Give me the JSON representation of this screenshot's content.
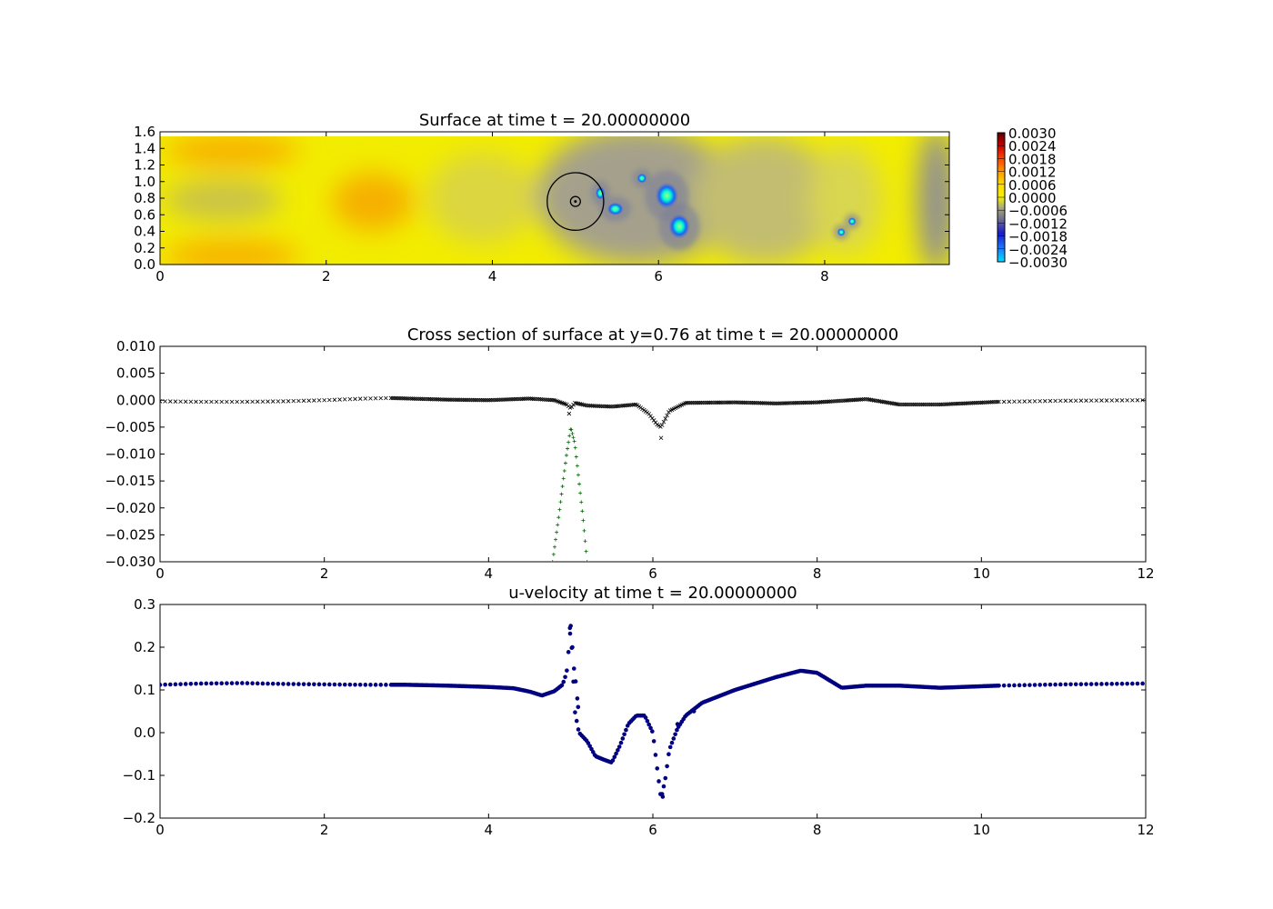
{
  "chart_data": [
    {
      "type": "heatmap",
      "title": "Surface at time t =    20.00000000",
      "xlim": [
        0,
        9.5
      ],
      "ylim": [
        0,
        1.6
      ],
      "xticks": [
        "0",
        "2",
        "4",
        "6",
        "8"
      ],
      "xtick_values": [
        0,
        2,
        4,
        6,
        8
      ],
      "yticks": [
        "0.0",
        "0.2",
        "0.4",
        "0.6",
        "0.8",
        "1.0",
        "1.2",
        "1.4",
        "1.6"
      ],
      "ytick_values": [
        0,
        0.2,
        0.4,
        0.6,
        0.8,
        1.0,
        1.2,
        1.4,
        1.6
      ],
      "colorbar": {
        "labels": [
          "0.0030",
          "0.0024",
          "0.0018",
          "0.0012",
          "0.0006",
          "0.0000",
          "−0.0006",
          "−0.0012",
          "−0.0018",
          "−0.0024",
          "−0.0030"
        ],
        "values": [
          0.003,
          0.0024,
          0.0018,
          0.0012,
          0.0006,
          0,
          -0.0006,
          -0.0012,
          -0.0018,
          -0.0024,
          -0.003
        ],
        "colors": [
          "#5a0000",
          "#cc0000",
          "#ff4400",
          "#ff9900",
          "#ffdd00",
          "#f4f000",
          "#999999",
          "#777788",
          "#1a1acc",
          "#1a80ff",
          "#00e0ff"
        ]
      },
      "body_circle": {
        "x": 5.0,
        "y": 0.76,
        "outer_radius": 0.34,
        "inner_radius": 0.06
      },
      "features": [
        {
          "x": 5.3,
          "y": 0.86,
          "rx": 0.06,
          "ry": 0.08
        },
        {
          "x": 5.48,
          "y": 0.67,
          "rx": 0.1,
          "ry": 0.08
        },
        {
          "x": 5.8,
          "y": 1.04,
          "rx": 0.06,
          "ry": 0.06
        },
        {
          "x": 6.1,
          "y": 0.83,
          "rx": 0.14,
          "ry": 0.16
        },
        {
          "x": 6.25,
          "y": 0.46,
          "rx": 0.13,
          "ry": 0.15
        },
        {
          "x": 8.2,
          "y": 0.39,
          "rx": 0.05,
          "ry": 0.05
        },
        {
          "x": 8.33,
          "y": 0.52,
          "rx": 0.05,
          "ry": 0.05
        }
      ]
    },
    {
      "type": "scatter",
      "title": "Cross section of surface at y=0.76 at time t =    20.00000000",
      "xlim": [
        0,
        12
      ],
      "ylim": [
        -0.03,
        0.01
      ],
      "xticks": [
        "0",
        "2",
        "4",
        "6",
        "8",
        "10",
        "12"
      ],
      "xtick_values": [
        0,
        2,
        4,
        6,
        8,
        10,
        12
      ],
      "yticks": [
        "0.010",
        "0.005",
        "0.000",
        "−0.005",
        "−0.010",
        "−0.015",
        "−0.020",
        "−0.025",
        "−0.030"
      ],
      "ytick_values": [
        0.01,
        0.005,
        0,
        -0.005,
        -0.01,
        -0.015,
        -0.02,
        -0.025,
        -0.03
      ],
      "series": [
        {
          "marker": "x",
          "color": "#000000",
          "x": [
            0,
            0.5,
            1.0,
            1.5,
            2.0,
            2.5,
            2.8,
            3.5,
            4.0,
            4.5,
            4.8,
            4.95,
            5.0,
            5.05,
            5.2,
            5.5,
            5.8,
            5.95,
            6.05,
            6.1,
            6.2,
            6.4,
            7.0,
            7.5,
            8.0,
            8.6,
            9.0,
            9.5,
            10.2,
            11.0,
            12.0
          ],
          "y": [
            -0.0002,
            -0.0003,
            -0.0003,
            -0.0002,
            0.0,
            0.0003,
            0.0004,
            0.0001,
            0.0,
            0.0003,
            0.0,
            -0.0008,
            -0.0015,
            -0.0005,
            -0.001,
            -0.0012,
            -0.0008,
            -0.0025,
            -0.0045,
            -0.005,
            -0.002,
            -0.0005,
            -0.0004,
            -0.0006,
            -0.0004,
            0.0002,
            -0.0008,
            -0.0008,
            -0.0003,
            -0.0001,
            0.0
          ]
        },
        {
          "marker": "+",
          "color": "#006600",
          "x": [
            4.78,
            4.85,
            4.9,
            4.95,
            5.0,
            5.05,
            5.1,
            5.15,
            5.2
          ],
          "y": [
            -0.03,
            -0.022,
            -0.016,
            -0.01,
            -0.005,
            -0.008,
            -0.015,
            -0.022,
            -0.03
          ]
        }
      ]
    },
    {
      "type": "scatter",
      "title": "u-velocity at time t =    20.00000000",
      "xlim": [
        0,
        12
      ],
      "ylim": [
        -0.2,
        0.3
      ],
      "xticks": [
        "0",
        "2",
        "4",
        "6",
        "8",
        "10",
        "12"
      ],
      "xtick_values": [
        0,
        2,
        4,
        6,
        8,
        10,
        12
      ],
      "yticks": [
        "0.3",
        "0.2",
        "0.1",
        "0.0",
        "−0.1",
        "−0.2"
      ],
      "ytick_values": [
        0.3,
        0.2,
        0.1,
        0.0,
        -0.1,
        -0.2
      ],
      "series": [
        {
          "marker": "o",
          "color": "#000080",
          "x": [
            0,
            0.5,
            1.0,
            1.5,
            2.0,
            2.5,
            3.0,
            3.5,
            4.0,
            4.3,
            4.5,
            4.65,
            4.8,
            4.9,
            4.95,
            5.0,
            5.05,
            5.1,
            5.2,
            5.3,
            5.4,
            5.5,
            5.6,
            5.7,
            5.8,
            5.9,
            6.0,
            6.05,
            6.1,
            6.15,
            6.2,
            6.3,
            6.4,
            6.6,
            7.0,
            7.5,
            7.8,
            8.0,
            8.3,
            8.6,
            9.0,
            9.5,
            10.2,
            11.0,
            12.0
          ],
          "y": [
            0.112,
            0.115,
            0.116,
            0.114,
            0.113,
            0.112,
            0.112,
            0.11,
            0.107,
            0.104,
            0.096,
            0.087,
            0.097,
            0.112,
            0.14,
            0.248,
            0.05,
            0.0,
            -0.02,
            -0.055,
            -0.063,
            -0.07,
            -0.03,
            0.02,
            0.04,
            0.04,
            0.0,
            -0.08,
            -0.155,
            -0.11,
            -0.04,
            0.01,
            0.04,
            0.07,
            0.1,
            0.13,
            0.145,
            0.14,
            0.105,
            0.11,
            0.11,
            0.105,
            0.11,
            0.113,
            0.115
          ]
        }
      ]
    }
  ]
}
